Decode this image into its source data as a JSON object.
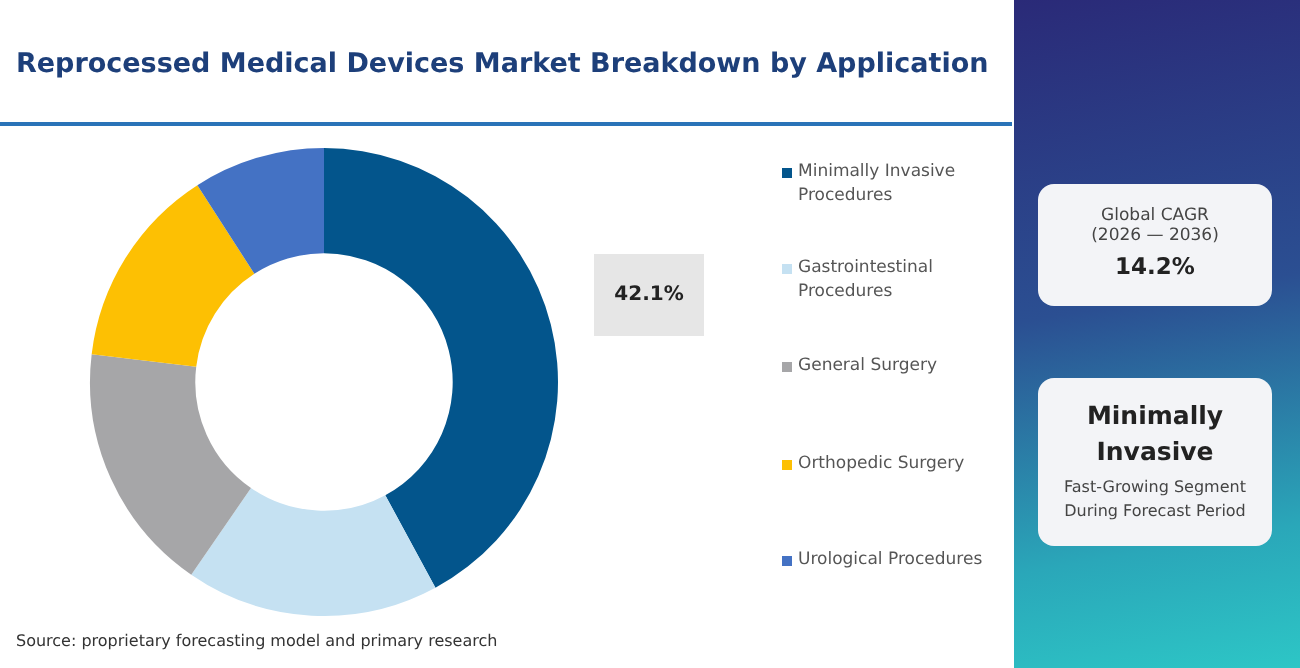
{
  "chart_data": {
    "type": "donut",
    "title": "Reprocessed Medical Devices Market Breakdown by Application",
    "categories": [
      "Minimally Invasive Procedures",
      "Gastrointestinal Procedures",
      "General Surgery",
      "Orthopedic Surgery",
      "Urological Procedures"
    ],
    "values": [
      42.1,
      17.5,
      17.3,
      14.0,
      9.1
    ],
    "colors": [
      "#03558c",
      "#c5e1f2",
      "#a6a6a8",
      "#fdc003",
      "#4472c4"
    ],
    "value_labels": [
      "42.1%",
      null,
      null,
      null,
      null
    ],
    "legend": "right",
    "annotations": [
      "Global CAGR",
      "(2026 — 2036)",
      "14.2%",
      "Minimally Invasive",
      "Fast-Growing Segment During Forecast Period",
      "Source: proprietary forecasting model and primary research"
    ]
  }
}
